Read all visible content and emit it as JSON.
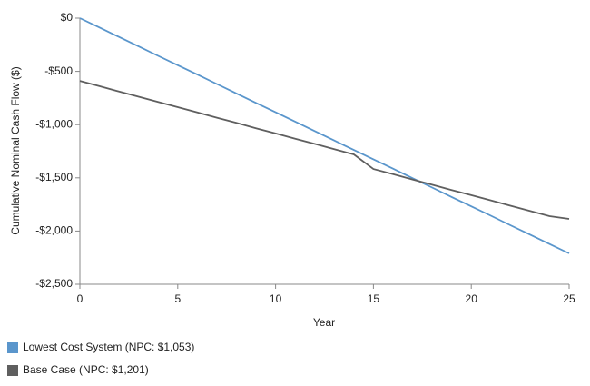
{
  "chart_data": {
    "type": "line",
    "x_label": "Year",
    "y_label": "Cumulative Nominal Cash Flow ($)",
    "x": [
      0,
      1,
      2,
      3,
      4,
      5,
      6,
      7,
      8,
      9,
      10,
      11,
      12,
      13,
      14,
      15,
      16,
      17,
      18,
      19,
      20,
      21,
      22,
      23,
      24,
      25
    ],
    "series": [
      {
        "name": "Lowest Cost System (NPC: $1,053)",
        "color": "#5a96cc",
        "values": [
          0,
          -88,
          -177,
          -265,
          -354,
          -442,
          -530,
          -619,
          -707,
          -796,
          -884,
          -972,
          -1061,
          -1149,
          -1238,
          -1326,
          -1414,
          -1503,
          -1591,
          -1680,
          -1768,
          -1856,
          -1945,
          -2033,
          -2122,
          -2210
        ]
      },
      {
        "name": "Base Case (NPC: $1,201)",
        "color": "#5f5f5f",
        "values": [
          -590,
          -639,
          -689,
          -738,
          -787,
          -836,
          -886,
          -935,
          -984,
          -1034,
          -1083,
          -1132,
          -1181,
          -1231,
          -1280,
          -1417,
          -1466,
          -1515,
          -1565,
          -1614,
          -1663,
          -1712,
          -1762,
          -1811,
          -1860,
          -1886
        ]
      }
    ],
    "xlim": [
      0,
      25
    ],
    "xticks": [
      0,
      5,
      10,
      15,
      20,
      25
    ],
    "ylim": [
      -2500,
      0
    ],
    "yticks": [
      {
        "value": 0,
        "label": "$0"
      },
      {
        "value": -500,
        "label": "-$500"
      },
      {
        "value": -1000,
        "label": "-$1,000"
      },
      {
        "value": -1500,
        "label": "-$1,500"
      },
      {
        "value": -2000,
        "label": "-$2,000"
      },
      {
        "value": -2500,
        "label": "-$2,500"
      }
    ],
    "grid": false,
    "legend": "bottom"
  }
}
